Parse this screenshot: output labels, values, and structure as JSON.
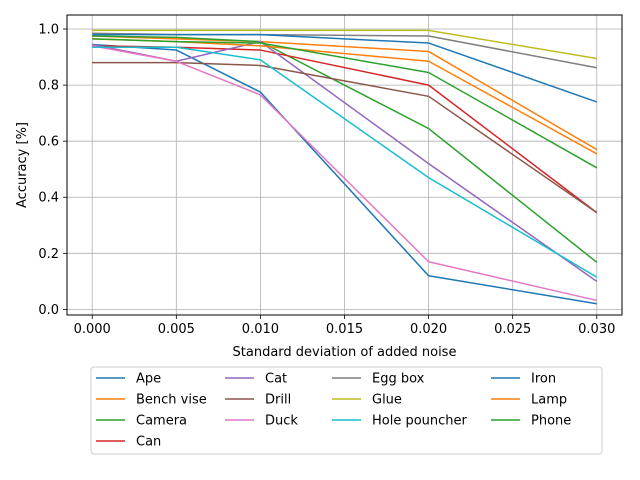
{
  "chart_data": {
    "type": "line",
    "xlabel": "Standard deviation of added noise",
    "ylabel": "Accuracy [%]",
    "x": [
      0.0,
      0.005,
      0.01,
      0.02,
      0.03
    ],
    "xlim": [
      -0.0015,
      0.0315
    ],
    "ylim": [
      -0.02,
      1.05
    ],
    "xticks": [
      0.0,
      0.005,
      0.01,
      0.015,
      0.02,
      0.025,
      0.03
    ],
    "xtick_labels": [
      "0.000",
      "0.005",
      "0.010",
      "0.015",
      "0.020",
      "0.025",
      "0.030"
    ],
    "yticks": [
      0.0,
      0.2,
      0.4,
      0.6,
      0.8,
      1.0
    ],
    "ytick_labels": [
      "0.0",
      "0.2",
      "0.4",
      "0.6",
      "0.8",
      "1.0"
    ],
    "grid": true,
    "legend_position": "below plot, 4 columns",
    "series": [
      {
        "name": "Ape",
        "color": "#1f77b4",
        "values": [
          0.945,
          0.925,
          0.775,
          0.12,
          0.02
        ]
      },
      {
        "name": "Bench vise",
        "color": "#ff7f0e",
        "values": [
          0.975,
          0.965,
          0.955,
          0.92,
          0.57
        ]
      },
      {
        "name": "Camera",
        "color": "#2ca02c",
        "values": [
          0.975,
          0.97,
          0.955,
          0.645,
          0.168
        ]
      },
      {
        "name": "Can",
        "color": "#d62728",
        "values": [
          0.94,
          0.935,
          0.925,
          0.8,
          0.345
        ]
      },
      {
        "name": "Cat",
        "color": "#9467bd",
        "values": [
          0.945,
          0.885,
          0.955,
          0.52,
          0.1
        ]
      },
      {
        "name": "Drill",
        "color": "#8c564b",
        "values": [
          0.88,
          0.88,
          0.87,
          0.76,
          0.345
        ]
      },
      {
        "name": "Duck",
        "color": "#e377c2",
        "values": [
          0.94,
          0.885,
          0.765,
          0.17,
          0.032
        ]
      },
      {
        "name": "Egg box",
        "color": "#7f7f7f",
        "values": [
          0.985,
          0.98,
          0.98,
          0.975,
          0.862
        ]
      },
      {
        "name": "Glue",
        "color": "#bcbd22",
        "values": [
          0.995,
          0.995,
          0.995,
          0.995,
          0.895
        ]
      },
      {
        "name": "Hole pouncher",
        "color": "#17becf",
        "values": [
          0.935,
          0.935,
          0.89,
          0.47,
          0.115
        ]
      },
      {
        "name": "Iron",
        "color": "#1f77b4",
        "values": [
          0.98,
          0.98,
          0.98,
          0.95,
          0.74
        ]
      },
      {
        "name": "Lamp",
        "color": "#ff7f0e",
        "values": [
          0.965,
          0.955,
          0.94,
          0.885,
          0.555
        ]
      },
      {
        "name": "Phone",
        "color": "#2ca02c",
        "values": [
          0.965,
          0.955,
          0.95,
          0.845,
          0.505
        ]
      }
    ]
  }
}
